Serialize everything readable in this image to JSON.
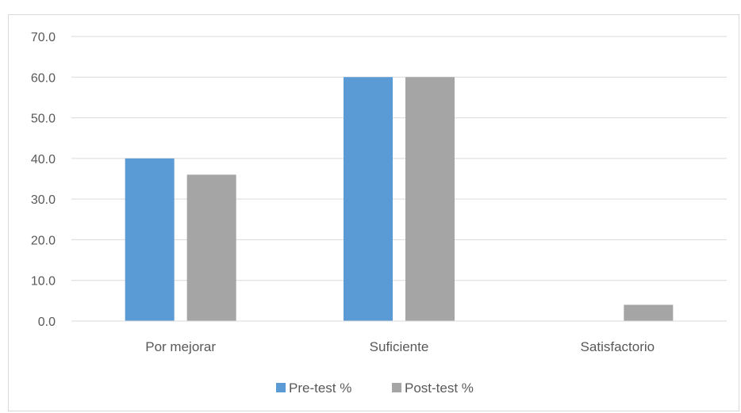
{
  "chart_data": {
    "type": "bar",
    "categories": [
      "Por mejorar",
      "Suficiente",
      "Satisfactorio"
    ],
    "series": [
      {
        "name": "Pre-test %",
        "values": [
          40.0,
          60.0,
          0.0
        ],
        "color": "#5b9bd5"
      },
      {
        "name": "Post-test %",
        "values": [
          36.0,
          60.0,
          4.0
        ],
        "color": "#a5a5a5"
      }
    ],
    "y_ticks": [
      "0.0",
      "10.0",
      "20.0",
      "30.0",
      "40.0",
      "50.0",
      "60.0",
      "70.0"
    ],
    "ylim": [
      0,
      70
    ],
    "grid": true,
    "legend_position": "bottom"
  }
}
